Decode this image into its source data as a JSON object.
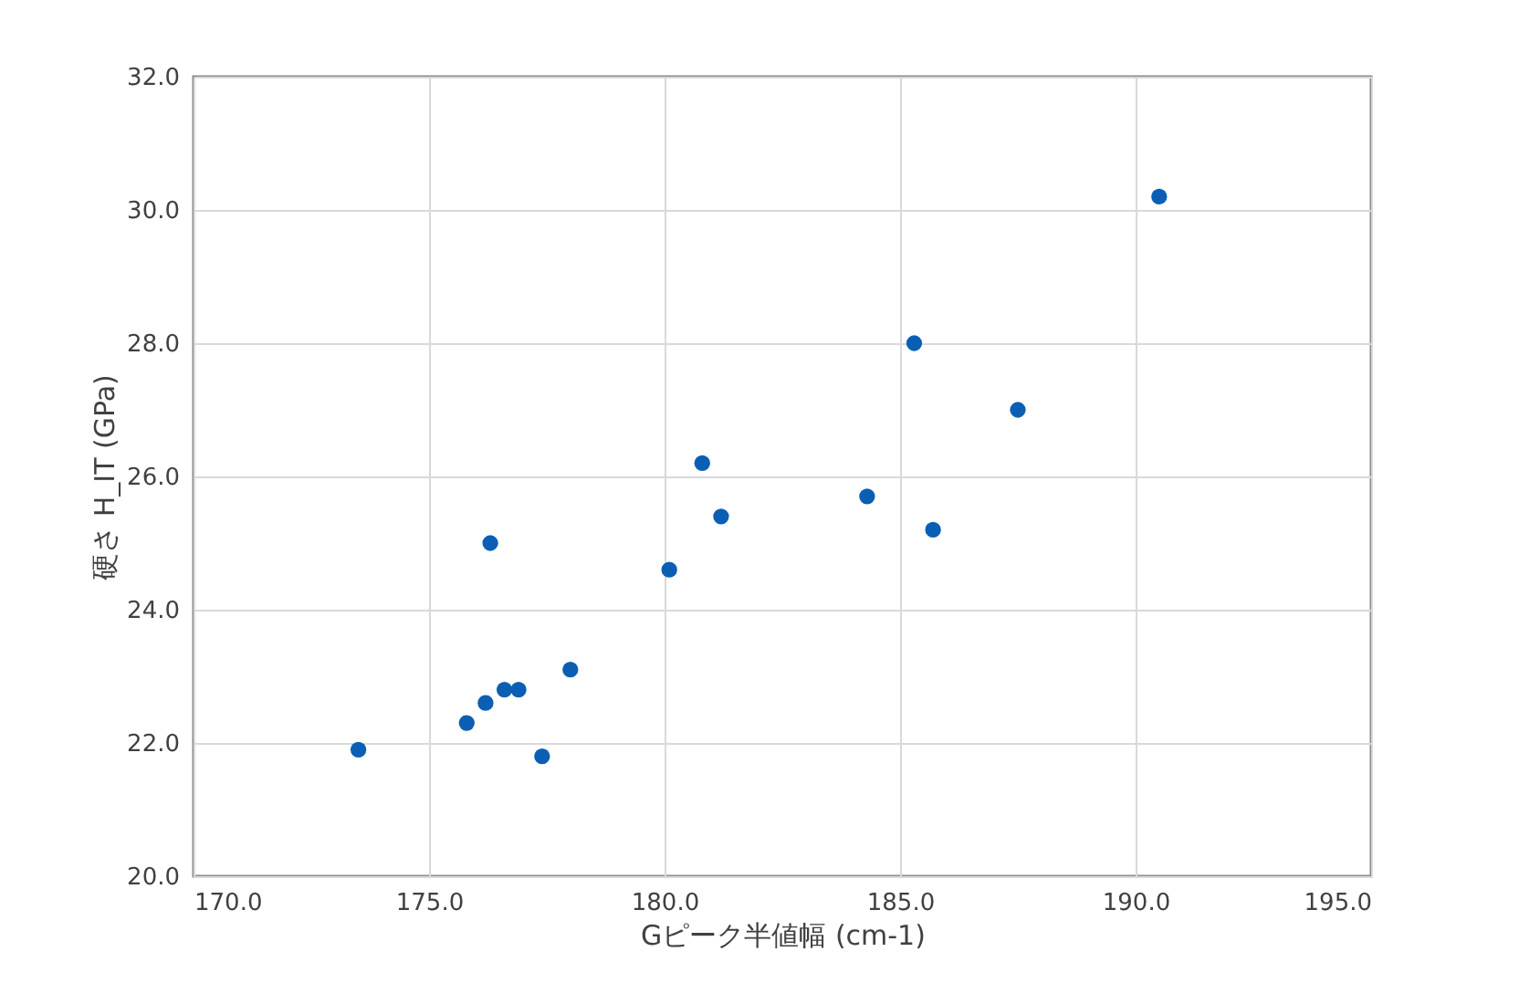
{
  "chart_data": {
    "type": "scatter",
    "xlabel": "Gピーク半値幅 (cm-1)",
    "ylabel": "硬さ H_IT (GPa)",
    "x": [
      173.5,
      175.8,
      176.2,
      176.3,
      176.6,
      176.9,
      177.4,
      178.0,
      180.1,
      180.8,
      181.2,
      184.3,
      185.3,
      185.7,
      187.5,
      190.5
    ],
    "series": [
      {
        "color": "#0a5fb4",
        "values": [
          21.9,
          22.3,
          22.6,
          25.0,
          22.8,
          22.8,
          21.8,
          23.1,
          24.6,
          26.2,
          25.4,
          25.7,
          28.0,
          25.2,
          27.0,
          30.2
        ]
      }
    ],
    "xlim": [
      170,
      195
    ],
    "xticks": [
      {
        "value": 170,
        "label": "170.0"
      },
      {
        "value": 175,
        "label": "175.0"
      },
      {
        "value": 180,
        "label": "180.0"
      },
      {
        "value": 185,
        "label": "185.0"
      },
      {
        "value": 190,
        "label": "190.0"
      },
      {
        "value": 195,
        "label": "195.0"
      }
    ],
    "ylim": [
      20,
      32
    ],
    "yticks": [
      {
        "value": 20,
        "label": "20.0"
      },
      {
        "value": 22,
        "label": "22.0"
      },
      {
        "value": 24,
        "label": "24.0"
      },
      {
        "value": 26,
        "label": "26.0"
      },
      {
        "value": 28,
        "label": "28.0"
      },
      {
        "value": 30,
        "label": "30.0"
      },
      {
        "value": 32,
        "label": "32.0"
      }
    ],
    "grid": true,
    "marker": "circle"
  }
}
